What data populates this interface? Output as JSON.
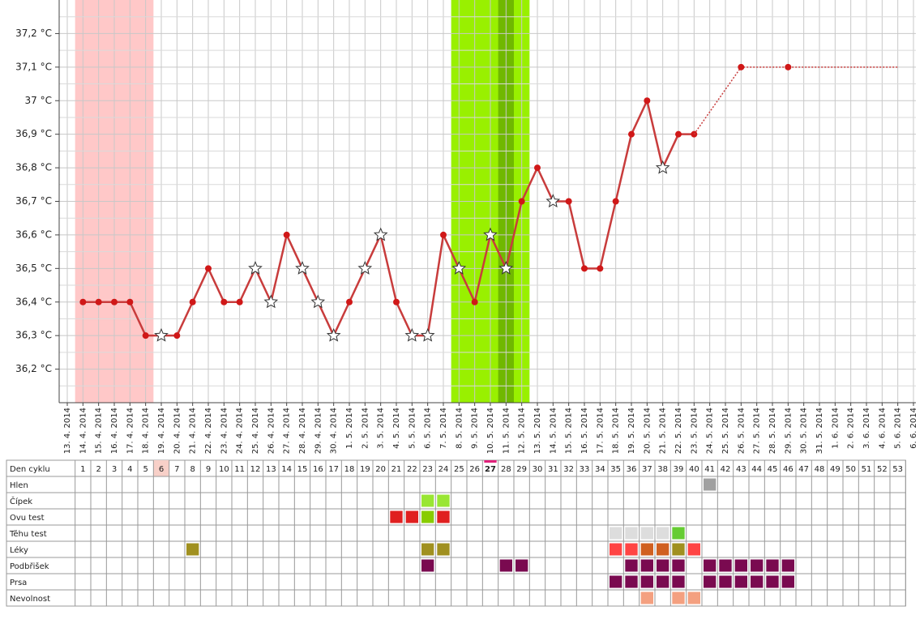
{
  "chart_data": {
    "type": "line",
    "categories": [
      "13. 4. 2014",
      "14. 4. 2014",
      "15. 4. 2014",
      "16. 4. 2014",
      "17. 4. 2014",
      "18. 4. 2014",
      "19. 4. 2014",
      "20. 4. 2014",
      "21. 4. 2014",
      "22. 4. 2014",
      "23. 4. 2014",
      "24. 4. 2014",
      "25. 4. 2014",
      "26. 4. 2014",
      "27. 4. 2014",
      "28. 4. 2014",
      "29. 4. 2014",
      "30. 4. 2014",
      "1. 5. 2014",
      "2. 5. 2014",
      "3. 5. 2014",
      "4. 5. 2014",
      "5. 5. 2014",
      "6. 5. 2014",
      "7. 5. 2014",
      "8. 5. 2014",
      "9. 5. 2014",
      "10. 5. 2014",
      "11. 5. 2014",
      "12. 5. 2014",
      "13. 5. 2014",
      "14. 5. 2014",
      "15. 5. 2014",
      "16. 5. 2014",
      "17. 5. 2014",
      "18. 5. 2014",
      "19. 5. 2014",
      "20. 5. 2014",
      "21. 5. 2014",
      "22. 5. 2014",
      "23. 5. 2014",
      "24. 5. 2014",
      "25. 5. 2014",
      "26. 5. 2014",
      "27. 5. 2014",
      "28. 5. 2014",
      "29. 5. 2014",
      "30. 5. 2014",
      "31. 5. 2014",
      "1. 6. 2014",
      "2. 6. 2014",
      "3. 6. 2014",
      "4. 6. 2014",
      "5. 6. 2014",
      "6. 6. 2014"
    ],
    "series": [
      {
        "color": "#c83c3c",
        "values": [
          null,
          36.4,
          36.4,
          36.4,
          36.4,
          36.3,
          36.3,
          36.3,
          36.4,
          36.5,
          36.4,
          36.4,
          36.5,
          36.4,
          36.6,
          36.5,
          36.4,
          36.3,
          36.4,
          36.5,
          36.6,
          36.4,
          36.3,
          36.3,
          36.6,
          36.5,
          36.4,
          36.6,
          36.5,
          36.7,
          36.8,
          36.7,
          36.7,
          36.5,
          36.5,
          36.7,
          36.9,
          37.0,
          36.8,
          36.9,
          36.9,
          null,
          null,
          null,
          null,
          null,
          null,
          null,
          null,
          null,
          null,
          null,
          null,
          null,
          null
        ],
        "stars": [
          false,
          false,
          false,
          false,
          false,
          false,
          true,
          false,
          false,
          false,
          false,
          false,
          true,
          true,
          false,
          true,
          true,
          true,
          false,
          true,
          true,
          false,
          true,
          true,
          false,
          true,
          false,
          true,
          true,
          false,
          false,
          true,
          false,
          false,
          false,
          false,
          false,
          false,
          true,
          false,
          false,
          false,
          false,
          false,
          false,
          false,
          false,
          false,
          false,
          false,
          false,
          false,
          false,
          false,
          false
        ]
      },
      {
        "color": "#c83c3c",
        "dotted": true,
        "values": [
          null,
          null,
          null,
          null,
          null,
          null,
          null,
          null,
          null,
          null,
          null,
          null,
          null,
          null,
          null,
          null,
          null,
          null,
          null,
          null,
          null,
          null,
          null,
          null,
          null,
          null,
          null,
          null,
          null,
          null,
          null,
          null,
          null,
          null,
          null,
          null,
          null,
          null,
          null,
          null,
          null,
          null,
          null,
          37.1,
          null,
          null,
          37.1,
          null,
          null,
          null,
          null,
          null,
          null,
          null,
          null
        ]
      }
    ],
    "bands": [
      {
        "from": "14. 4. 2014",
        "to": "18. 4. 2014",
        "color": "#ffc8c8"
      },
      {
        "from": "8. 5. 2014",
        "to": "12. 5. 2014",
        "color": "#99f000"
      },
      {
        "from": "11. 5. 2014",
        "to": "11. 5. 2014",
        "color": "#70b800"
      }
    ],
    "ylim": [
      36.1,
      37.3
    ],
    "yticks": [
      {
        "value": 36.2,
        "label": "36,2 °C"
      },
      {
        "value": 36.3,
        "label": "36,3 °C"
      },
      {
        "value": 36.4,
        "label": "36,4 °C"
      },
      {
        "value": 36.5,
        "label": "36,5 °C"
      },
      {
        "value": 36.6,
        "label": "36,6 °C"
      },
      {
        "value": 36.7,
        "label": "36,7 °C"
      },
      {
        "value": 36.8,
        "label": "36,8 °C"
      },
      {
        "value": 36.9,
        "label": "36,9 °C"
      },
      {
        "value": 37.0,
        "label": "37 °C"
      },
      {
        "value": 37.1,
        "label": "37,1 °C"
      },
      {
        "value": 37.2,
        "label": "37,2 °C"
      }
    ],
    "grid": true
  },
  "table": {
    "header": "Den cyklu",
    "days": [
      1,
      2,
      3,
      4,
      5,
      6,
      7,
      8,
      9,
      10,
      11,
      12,
      13,
      14,
      15,
      16,
      17,
      18,
      19,
      20,
      21,
      22,
      23,
      24,
      25,
      26,
      27,
      28,
      29,
      30,
      31,
      32,
      33,
      34,
      35,
      36,
      37,
      38,
      39,
      40,
      41,
      42,
      43,
      44,
      45,
      46,
      47,
      48,
      49,
      50,
      51,
      52,
      53
    ],
    "marked_day": 6,
    "today": 27,
    "rows": [
      {
        "label": "Hlen",
        "cells": [
          {
            "day": 41,
            "color": "#a0a0a0"
          }
        ]
      },
      {
        "label": "Čípek",
        "cells": [
          {
            "day": 23,
            "color": "#99e633"
          },
          {
            "day": 24,
            "color": "#99e633"
          }
        ]
      },
      {
        "label": "Ovu test",
        "cells": [
          {
            "day": 21,
            "color": "#e02020"
          },
          {
            "day": 22,
            "color": "#e02020"
          },
          {
            "day": 23,
            "color": "#88cc00"
          },
          {
            "day": 24,
            "color": "#e02020"
          }
        ]
      },
      {
        "label": "Těhu test",
        "cells": [
          {
            "day": 35,
            "color": "#dddddd"
          },
          {
            "day": 36,
            "color": "#dddddd"
          },
          {
            "day": 37,
            "color": "#dddddd"
          },
          {
            "day": 38,
            "color": "#dddddd"
          },
          {
            "day": 39,
            "color": "#66cc33"
          }
        ]
      },
      {
        "label": "Léky",
        "cells": [
          {
            "day": 8,
            "color": "#a09020"
          },
          {
            "day": 23,
            "color": "#a09020"
          },
          {
            "day": 24,
            "color": "#a09020"
          },
          {
            "day": 35,
            "color": "#ff4444"
          },
          {
            "day": 36,
            "color": "#ff4444"
          },
          {
            "day": 37,
            "color": "#d06020"
          },
          {
            "day": 38,
            "color": "#d06020"
          },
          {
            "day": 39,
            "color": "#a09020"
          },
          {
            "day": 40,
            "color": "#ff4444"
          }
        ]
      },
      {
        "label": "Podbřišek",
        "cells": [
          {
            "day": 23,
            "color": "#7a0a50"
          },
          {
            "day": 28,
            "color": "#7a0a50"
          },
          {
            "day": 29,
            "color": "#7a0a50"
          },
          {
            "day": 36,
            "color": "#7a0a50"
          },
          {
            "day": 37,
            "color": "#7a0a50"
          },
          {
            "day": 38,
            "color": "#7a0a50"
          },
          {
            "day": 39,
            "color": "#7a0a50"
          },
          {
            "day": 41,
            "color": "#7a0a50"
          },
          {
            "day": 42,
            "color": "#7a0a50"
          },
          {
            "day": 43,
            "color": "#7a0a50"
          },
          {
            "day": 44,
            "color": "#7a0a50"
          },
          {
            "day": 45,
            "color": "#7a0a50"
          },
          {
            "day": 46,
            "color": "#7a0a50"
          }
        ]
      },
      {
        "label": "Prsa",
        "cells": [
          {
            "day": 35,
            "color": "#7a0a50"
          },
          {
            "day": 36,
            "color": "#7a0a50"
          },
          {
            "day": 37,
            "color": "#7a0a50"
          },
          {
            "day": 38,
            "color": "#7a0a50"
          },
          {
            "day": 39,
            "color": "#7a0a50"
          },
          {
            "day": 41,
            "color": "#7a0a50"
          },
          {
            "day": 42,
            "color": "#7a0a50"
          },
          {
            "day": 43,
            "color": "#7a0a50"
          },
          {
            "day": 44,
            "color": "#7a0a50"
          },
          {
            "day": 45,
            "color": "#7a0a50"
          },
          {
            "day": 46,
            "color": "#7a0a50"
          }
        ]
      },
      {
        "label": "Nevolnost",
        "cells": [
          {
            "day": 37,
            "color": "#f4a080"
          },
          {
            "day": 39,
            "color": "#f4a080"
          },
          {
            "day": 40,
            "color": "#f4a080"
          }
        ]
      }
    ]
  }
}
